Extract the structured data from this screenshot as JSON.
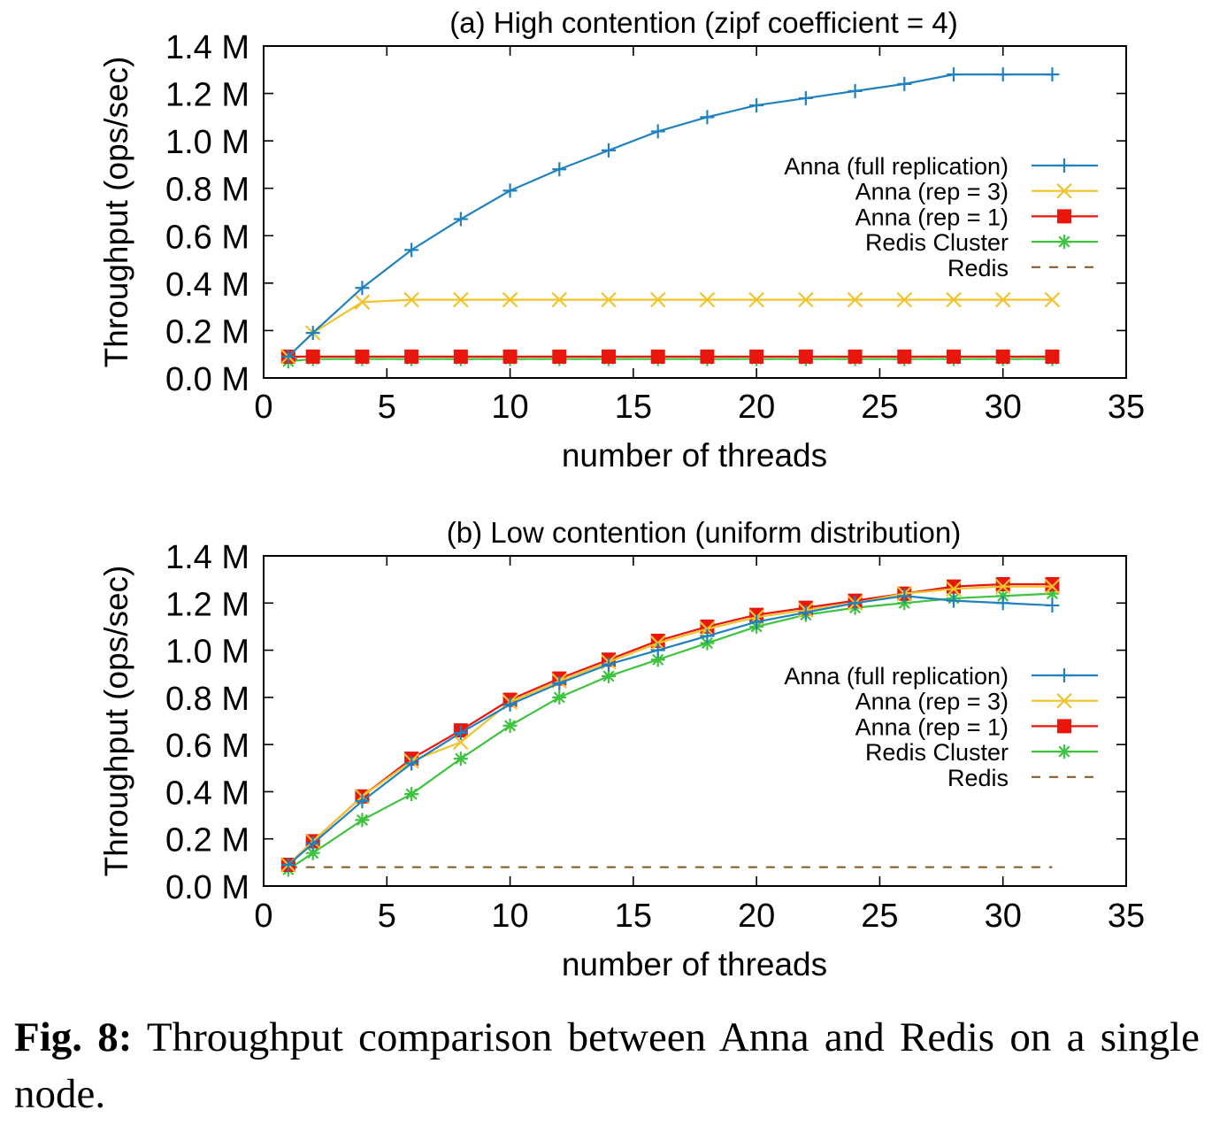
{
  "caption": {
    "label": "Fig. 8:",
    "text": "Throughput comparison between Anna and Redis on a single node."
  },
  "chart_data": [
    {
      "type": "line",
      "title": "(a) High contention (zipf coefficient = 4)",
      "xlabel": "number of threads",
      "ylabel": "Throughput (ops/sec)",
      "xlim": [
        0,
        35
      ],
      "ylim": [
        0,
        1.4
      ],
      "xticks": [
        "0",
        "5",
        "10",
        "15",
        "20",
        "25",
        "30",
        "35"
      ],
      "yticks": [
        "0.0 M",
        "0.2 M",
        "0.4 M",
        "0.6 M",
        "0.8 M",
        "1.0 M",
        "1.2 M",
        "1.4 M"
      ],
      "grid": false,
      "legend_position": "right",
      "x": [
        1,
        2,
        4,
        6,
        8,
        10,
        12,
        14,
        16,
        18,
        20,
        22,
        24,
        26,
        28,
        30,
        32
      ],
      "series": [
        {
          "name": "Anna (full replication)",
          "color": "#1f82bf",
          "marker": "plus",
          "dash": "solid",
          "values": [
            0.09,
            0.19,
            0.38,
            0.54,
            0.67,
            0.79,
            0.88,
            0.96,
            1.04,
            1.1,
            1.15,
            1.18,
            1.21,
            1.24,
            1.28,
            1.28,
            1.28
          ]
        },
        {
          "name": "Anna (rep = 3)",
          "color": "#f2c22c",
          "marker": "cross",
          "dash": "solid",
          "values": [
            0.09,
            0.19,
            0.32,
            0.33,
            0.33,
            0.33,
            0.33,
            0.33,
            0.33,
            0.33,
            0.33,
            0.33,
            0.33,
            0.33,
            0.33,
            0.33,
            0.33
          ]
        },
        {
          "name": "Anna (rep = 1)",
          "color": "#e8160d",
          "marker": "square",
          "dash": "solid",
          "values": [
            0.09,
            0.09,
            0.09,
            0.09,
            0.09,
            0.09,
            0.09,
            0.09,
            0.09,
            0.09,
            0.09,
            0.09,
            0.09,
            0.09,
            0.09,
            0.09,
            0.09
          ]
        },
        {
          "name": "Redis Cluster",
          "color": "#3ec33e",
          "marker": "star",
          "dash": "solid",
          "values": [
            0.07,
            0.08,
            0.08,
            0.08,
            0.08,
            0.08,
            0.08,
            0.08,
            0.08,
            0.08,
            0.08,
            0.08,
            0.08,
            0.08,
            0.08,
            0.08,
            0.08
          ]
        },
        {
          "name": "Redis",
          "color": "#8b5a2b",
          "marker": "none",
          "dash": "dashed",
          "values": [
            0.08,
            0.08,
            0.08,
            0.08,
            0.08,
            0.08,
            0.08,
            0.08,
            0.08,
            0.08,
            0.08,
            0.08,
            0.08,
            0.08,
            0.08,
            0.08,
            0.08
          ]
        }
      ]
    },
    {
      "type": "line",
      "title": "(b) Low contention (uniform distribution)",
      "xlabel": "number of threads",
      "ylabel": "Throughput (ops/sec)",
      "xlim": [
        0,
        35
      ],
      "ylim": [
        0,
        1.4
      ],
      "xticks": [
        "0",
        "5",
        "10",
        "15",
        "20",
        "25",
        "30",
        "35"
      ],
      "yticks": [
        "0.0 M",
        "0.2 M",
        "0.4 M",
        "0.6 M",
        "0.8 M",
        "1.0 M",
        "1.2 M",
        "1.4 M"
      ],
      "grid": false,
      "legend_position": "right",
      "x": [
        1,
        2,
        4,
        6,
        8,
        10,
        12,
        14,
        16,
        18,
        20,
        22,
        24,
        26,
        28,
        30,
        32
      ],
      "series": [
        {
          "name": "Anna (full replication)",
          "color": "#1f82bf",
          "marker": "plus",
          "dash": "solid",
          "values": [
            0.09,
            0.18,
            0.36,
            0.52,
            0.65,
            0.77,
            0.86,
            0.94,
            1.0,
            1.06,
            1.12,
            1.16,
            1.2,
            1.23,
            1.21,
            1.2,
            1.19
          ]
        },
        {
          "name": "Anna (rep = 3)",
          "color": "#f2c22c",
          "marker": "cross",
          "dash": "solid",
          "values": [
            0.09,
            0.19,
            0.38,
            0.53,
            0.61,
            0.78,
            0.87,
            0.95,
            1.03,
            1.09,
            1.14,
            1.17,
            1.2,
            1.24,
            1.26,
            1.27,
            1.27
          ]
        },
        {
          "name": "Anna (rep = 1)",
          "color": "#e8160d",
          "marker": "square",
          "dash": "solid",
          "values": [
            0.09,
            0.19,
            0.38,
            0.54,
            0.66,
            0.79,
            0.88,
            0.96,
            1.04,
            1.1,
            1.15,
            1.18,
            1.21,
            1.24,
            1.27,
            1.28,
            1.28
          ]
        },
        {
          "name": "Redis Cluster",
          "color": "#3ec33e",
          "marker": "star",
          "dash": "solid",
          "values": [
            0.07,
            0.14,
            0.28,
            0.39,
            0.54,
            0.68,
            0.8,
            0.89,
            0.96,
            1.03,
            1.1,
            1.15,
            1.18,
            1.2,
            1.22,
            1.23,
            1.24
          ]
        },
        {
          "name": "Redis",
          "color": "#8b5a2b",
          "marker": "none",
          "dash": "dashed",
          "values": [
            0.08,
            0.08,
            0.08,
            0.08,
            0.08,
            0.08,
            0.08,
            0.08,
            0.08,
            0.08,
            0.08,
            0.08,
            0.08,
            0.08,
            0.08,
            0.08,
            0.08
          ]
        }
      ]
    }
  ]
}
